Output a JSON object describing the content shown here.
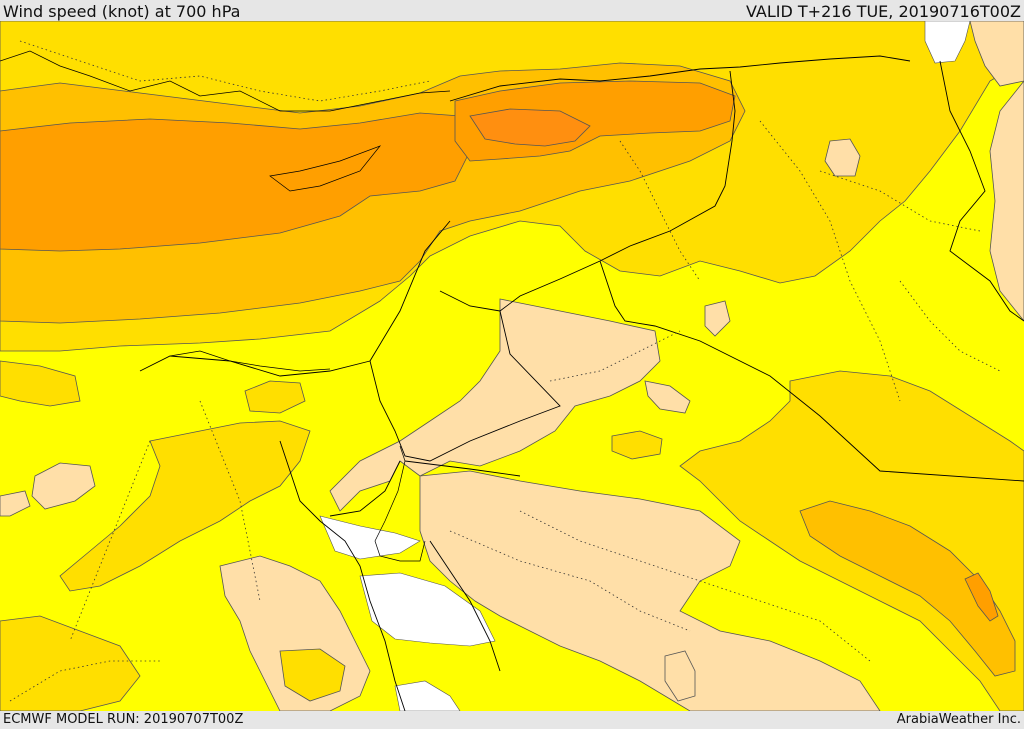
{
  "header": {
    "title": "Wind speed (knot) at 700 hPa",
    "valid": "VALID T+216 TUE, 20190716T00Z"
  },
  "footer": {
    "model_run": "ECMWF MODEL RUN: 20190707T00Z",
    "credit": "ArabiaWeather Inc."
  },
  "colors": {
    "background": "#e6e6e6",
    "band_light": "#ffdfa8",
    "band_yellow": "#ffff00",
    "band_gold": "#ffdf00",
    "band_amber": "#ffc000",
    "band_orange": "#ff9f00",
    "band_dark_orange": "#ff8f10",
    "sea": "#ffffff",
    "contour": "#555555",
    "border": "#000000"
  }
}
